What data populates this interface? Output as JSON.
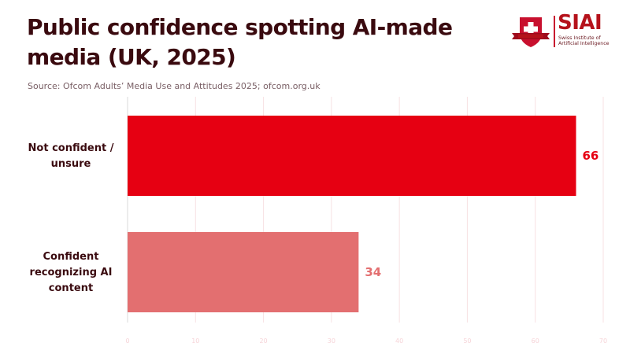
{
  "header": {
    "title": "Public confidence spotting AI-made media (UK, 2025)",
    "source": "Source: Ofcom Adults’ Media Use and Attitudes 2025; ofcom.org.uk"
  },
  "logo": {
    "name": "SIAI",
    "subtitle_line1": "Swiss Institute of",
    "subtitle_line2": "Artificial Intelligence",
    "icon": "shield-cross-icon"
  },
  "colors": {
    "title": "#3a0a0f",
    "bar_primary": "#e60012",
    "bar_secondary": "#e36f70",
    "grid": "#f7e1e3",
    "axis": "#d9d9d9"
  },
  "chart_data": {
    "type": "bar",
    "orientation": "horizontal",
    "title": "Public confidence spotting AI-made media (UK, 2025)",
    "subtitle": "Source: Ofcom Adults’ Media Use and Attitudes 2025; ofcom.org.uk",
    "categories": [
      "Not confident / unsure",
      "Confident recognizing AI content"
    ],
    "category_lines": [
      [
        "Not confident /",
        "unsure"
      ],
      [
        "Confident",
        "recognizing AI",
        "content"
      ]
    ],
    "values": [
      66,
      34
    ],
    "value_labels": [
      "66",
      "34"
    ],
    "bar_colors": [
      "#e60012",
      "#e36f70"
    ],
    "xlabel": "",
    "ylabel": "",
    "xlim": [
      0,
      70
    ],
    "xticks": [
      0,
      10,
      20,
      30,
      40,
      50,
      60,
      70
    ],
    "xtick_labels": [
      "0",
      "10",
      "20",
      "30",
      "40",
      "50",
      "60",
      "70"
    ],
    "grid": true,
    "legend": "none"
  }
}
